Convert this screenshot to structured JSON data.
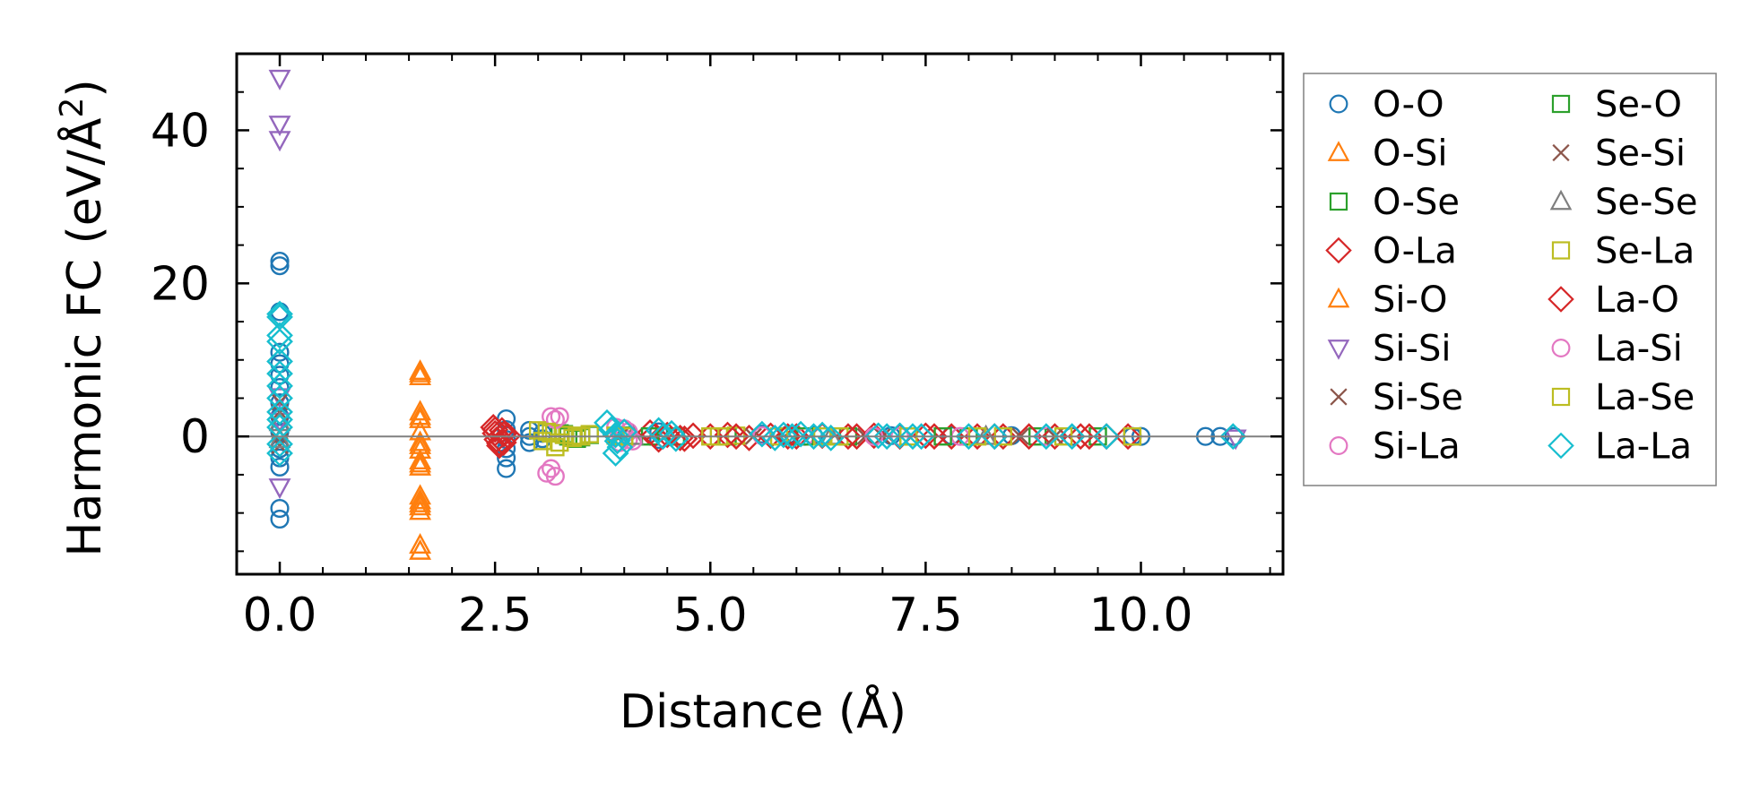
{
  "chart_data": {
    "type": "scatter",
    "title": "",
    "xlabel": "Distance (Å)",
    "ylabel_main": "Harmonic FC (eV/Å",
    "ylabel_sup": "2",
    "ylabel_close": ")",
    "xlim": [
      -0.5,
      11.65
    ],
    "ylim": [
      -18,
      50
    ],
    "xticks": [
      0.0,
      2.5,
      5.0,
      7.5,
      10.0
    ],
    "xtick_labels": [
      "0.0",
      "2.5",
      "5.0",
      "7.5",
      "10.0"
    ],
    "yticks": [
      0,
      20,
      40
    ],
    "ytick_labels": [
      "0",
      "20",
      "40"
    ],
    "grid": false,
    "zero_line": true,
    "legend_position": "outside-right",
    "series": [
      {
        "name": "O-O",
        "marker": "circle",
        "color": "#1f77b4",
        "points": [
          [
            0,
            22.9
          ],
          [
            0,
            22.3
          ],
          [
            0,
            16.3
          ],
          [
            0,
            11.0
          ],
          [
            0,
            9.5
          ],
          [
            0,
            8.0
          ],
          [
            0,
            6.4
          ],
          [
            0,
            4.4
          ],
          [
            0,
            2.6
          ],
          [
            0,
            0.6
          ],
          [
            0,
            -1.6
          ],
          [
            0,
            -2.8
          ],
          [
            0,
            -4.0
          ],
          [
            0,
            -9.4
          ],
          [
            0,
            -10.8
          ],
          [
            2.63,
            2.3
          ],
          [
            2.63,
            0.9
          ],
          [
            2.63,
            -0.4
          ],
          [
            2.63,
            -1.6
          ],
          [
            2.63,
            -2.8
          ],
          [
            2.63,
            -4.2
          ],
          [
            2.9,
            0.8
          ],
          [
            2.9,
            0
          ],
          [
            2.9,
            -0.8
          ],
          [
            3.05,
            0.4
          ],
          [
            3.05,
            -0.3
          ],
          [
            4.4,
            0.6
          ],
          [
            4.4,
            -0.4
          ],
          [
            5.6,
            0.3
          ],
          [
            5.9,
            0.2
          ],
          [
            6.2,
            0.1
          ],
          [
            7.1,
            0.1
          ],
          [
            7.8,
            0.1
          ],
          [
            8.5,
            0.1
          ],
          [
            9.2,
            0
          ],
          [
            9.9,
            0
          ],
          [
            10.0,
            0
          ],
          [
            10.75,
            0
          ],
          [
            10.92,
            0
          ],
          [
            11.08,
            0
          ]
        ]
      },
      {
        "name": "O-Si",
        "marker": "triangle-up",
        "color": "#ff7f0e",
        "points": [
          [
            1.63,
            8.5
          ],
          [
            1.63,
            7.8
          ],
          [
            1.63,
            3.2
          ],
          [
            1.63,
            2.2
          ],
          [
            1.63,
            0.6
          ],
          [
            1.63,
            -1.2
          ],
          [
            1.63,
            -1.8
          ],
          [
            1.63,
            -3.2
          ],
          [
            1.63,
            -4.0
          ],
          [
            1.63,
            -7.8
          ],
          [
            1.63,
            -8.8
          ],
          [
            1.63,
            -9.8
          ],
          [
            1.63,
            -14.2
          ],
          [
            1.63,
            -15.0
          ]
        ]
      },
      {
        "name": "O-Se",
        "marker": "square",
        "color": "#2ca02c",
        "points": [
          [
            3.25,
            0.4
          ],
          [
            3.35,
            0
          ],
          [
            3.45,
            -0.3
          ],
          [
            3.6,
            0.2
          ],
          [
            4.0,
            0.1
          ],
          [
            4.6,
            0
          ],
          [
            5.2,
            0
          ],
          [
            5.9,
            0
          ],
          [
            6.6,
            0
          ],
          [
            7.3,
            0
          ],
          [
            8.0,
            0
          ],
          [
            8.8,
            0
          ],
          [
            9.5,
            0
          ]
        ]
      },
      {
        "name": "O-La",
        "marker": "diamond",
        "color": "#d62728",
        "points": [
          [
            2.48,
            1.2
          ],
          [
            2.5,
            0.4
          ],
          [
            2.52,
            -0.4
          ],
          [
            2.55,
            -1.2
          ],
          [
            2.58,
            0.8
          ],
          [
            2.6,
            -0.8
          ],
          [
            2.65,
            0.1
          ],
          [
            4.3,
            0.5
          ],
          [
            4.4,
            -0.4
          ],
          [
            4.5,
            0.2
          ],
          [
            4.65,
            -0.2
          ],
          [
            4.8,
            0.1
          ],
          [
            5.0,
            0
          ],
          [
            5.2,
            0.2
          ],
          [
            5.45,
            -0.2
          ],
          [
            5.7,
            0.1
          ],
          [
            6.0,
            0
          ],
          [
            6.3,
            0.1
          ],
          [
            6.6,
            0
          ],
          [
            6.9,
            0.1
          ],
          [
            7.2,
            0
          ],
          [
            7.5,
            0.1
          ],
          [
            7.8,
            0
          ],
          [
            8.1,
            0
          ],
          [
            8.4,
            0
          ],
          [
            8.7,
            0
          ],
          [
            9.0,
            0
          ],
          [
            9.3,
            0
          ],
          [
            9.6,
            0
          ],
          [
            9.85,
            0
          ]
        ]
      },
      {
        "name": "Si-O",
        "marker": "triangle-up",
        "color": "#ff7f0e",
        "points": [
          [
            1.63,
            8.2
          ],
          [
            1.63,
            2.6
          ],
          [
            1.63,
            -0.8
          ],
          [
            1.63,
            -3.6
          ],
          [
            1.63,
            -8.4
          ],
          [
            1.63,
            -9.2
          ]
        ]
      },
      {
        "name": "Si-Si",
        "marker": "triangle-down",
        "color": "#9467bd",
        "points": [
          [
            0,
            46.8
          ],
          [
            0,
            40.8
          ],
          [
            0,
            38.8
          ],
          [
            0,
            5.2
          ],
          [
            0,
            2.0
          ],
          [
            0,
            -6.6
          ],
          [
            11.1,
            -0.2
          ]
        ]
      },
      {
        "name": "Si-Se",
        "marker": "x",
        "color": "#8c564b",
        "points": [
          [
            0,
            4.5
          ],
          [
            0,
            3.2
          ],
          [
            0,
            -0.6
          ],
          [
            0,
            -1.2
          ],
          [
            3.9,
            0.1
          ],
          [
            5.5,
            0
          ],
          [
            7.0,
            0
          ],
          [
            8.6,
            0
          ]
        ]
      },
      {
        "name": "Si-La",
        "marker": "circle",
        "color": "#e377c2",
        "points": [
          [
            3.15,
            2.6
          ],
          [
            3.25,
            2.6
          ],
          [
            3.1,
            -4.8
          ],
          [
            3.2,
            -5.2
          ],
          [
            3.9,
            1.2
          ],
          [
            3.95,
            -0.8
          ],
          [
            4.05,
            0.6
          ],
          [
            4.05,
            -0.4
          ],
          [
            5.6,
            0.1
          ],
          [
            6.1,
            0
          ],
          [
            7.2,
            0
          ],
          [
            7.9,
            0
          ],
          [
            8.9,
            0
          ]
        ]
      },
      {
        "name": "Se-O",
        "marker": "square",
        "color": "#2ca02c",
        "points": [
          [
            3.3,
            0.3
          ],
          [
            3.5,
            -0.1
          ],
          [
            4.3,
            0
          ],
          [
            6.1,
            0
          ],
          [
            7.7,
            0
          ]
        ]
      },
      {
        "name": "Se-Si",
        "marker": "x",
        "color": "#8c564b",
        "points": [
          [
            3.95,
            0
          ],
          [
            6.8,
            0
          ],
          [
            9.0,
            0
          ]
        ]
      },
      {
        "name": "Se-Se",
        "marker": "triangle-up",
        "color": "#7f7f7f",
        "points": [
          [
            0,
            1.8
          ],
          [
            0,
            -0.4
          ],
          [
            4.1,
            0
          ],
          [
            6.4,
            0
          ],
          [
            8.2,
            0
          ]
        ]
      },
      {
        "name": "Se-La",
        "marker": "square",
        "color": "#bcbd22",
        "points": [
          [
            3.0,
            0.8
          ],
          [
            3.05,
            -0.6
          ],
          [
            3.15,
            0.4
          ],
          [
            3.2,
            -1.4
          ],
          [
            3.3,
            0.2
          ],
          [
            3.4,
            -0.2
          ],
          [
            3.45,
            0.1
          ],
          [
            3.6,
            0.3
          ],
          [
            3.9,
            0.1
          ],
          [
            4.0,
            0
          ],
          [
            5.1,
            0
          ],
          [
            5.3,
            0.1
          ],
          [
            5.8,
            0
          ],
          [
            6.5,
            0
          ],
          [
            7.3,
            0
          ],
          [
            8.1,
            0
          ],
          [
            9.1,
            0
          ],
          [
            9.9,
            0
          ]
        ]
      },
      {
        "name": "La-O",
        "marker": "diamond",
        "color": "#d62728",
        "points": [
          [
            2.5,
            0.9
          ],
          [
            2.55,
            -0.9
          ],
          [
            2.6,
            0.3
          ],
          [
            4.35,
            0.2
          ],
          [
            4.7,
            -0.3
          ],
          [
            5.3,
            0
          ],
          [
            5.9,
            0
          ],
          [
            6.7,
            0
          ],
          [
            7.6,
            0
          ],
          [
            8.3,
            0
          ],
          [
            9.4,
            0
          ]
        ]
      },
      {
        "name": "La-Si",
        "marker": "circle",
        "color": "#e377c2",
        "points": [
          [
            3.2,
            2.2
          ],
          [
            3.15,
            -4.2
          ],
          [
            4.0,
            1.0
          ],
          [
            4.1,
            -0.6
          ],
          [
            6.9,
            0
          ]
        ]
      },
      {
        "name": "La-Se",
        "marker": "square",
        "color": "#bcbd22",
        "points": [
          [
            3.1,
            0.6
          ],
          [
            3.25,
            -0.8
          ],
          [
            3.5,
            0
          ],
          [
            5.0,
            0
          ],
          [
            6.3,
            0
          ],
          [
            8.4,
            0
          ]
        ]
      },
      {
        "name": "La-La",
        "marker": "diamond",
        "color": "#17becf",
        "points": [
          [
            0,
            16.0
          ],
          [
            0,
            15.6
          ],
          [
            0,
            13.2
          ],
          [
            0,
            12.4
          ],
          [
            0,
            9.8
          ],
          [
            0,
            8.2
          ],
          [
            0,
            6.6
          ],
          [
            0,
            5.0
          ],
          [
            0,
            3.2
          ],
          [
            0,
            2.2
          ],
          [
            0,
            1.2
          ],
          [
            0,
            -1.0
          ],
          [
            0,
            -2.2
          ],
          [
            3.8,
            1.8
          ],
          [
            3.85,
            0.9
          ],
          [
            3.9,
            0.2
          ],
          [
            3.92,
            -0.6
          ],
          [
            3.95,
            -1.4
          ],
          [
            3.9,
            -2.2
          ],
          [
            4.0,
            0.6
          ],
          [
            4.4,
            0.8
          ],
          [
            4.45,
            0
          ],
          [
            4.55,
            0.4
          ],
          [
            4.6,
            -0.3
          ],
          [
            5.6,
            0.3
          ],
          [
            5.75,
            -0.2
          ],
          [
            5.85,
            0.2
          ],
          [
            5.95,
            0
          ],
          [
            6.05,
            0.3
          ],
          [
            6.2,
            0
          ],
          [
            6.3,
            0.2
          ],
          [
            6.4,
            -0.2
          ],
          [
            6.95,
            0.1
          ],
          [
            7.05,
            0
          ],
          [
            7.2,
            0.1
          ],
          [
            7.35,
            0
          ],
          [
            7.45,
            0
          ],
          [
            8.0,
            0
          ],
          [
            8.3,
            0
          ],
          [
            8.9,
            0
          ],
          [
            9.2,
            0
          ],
          [
            9.6,
            0
          ],
          [
            11.07,
            0
          ]
        ]
      }
    ]
  }
}
